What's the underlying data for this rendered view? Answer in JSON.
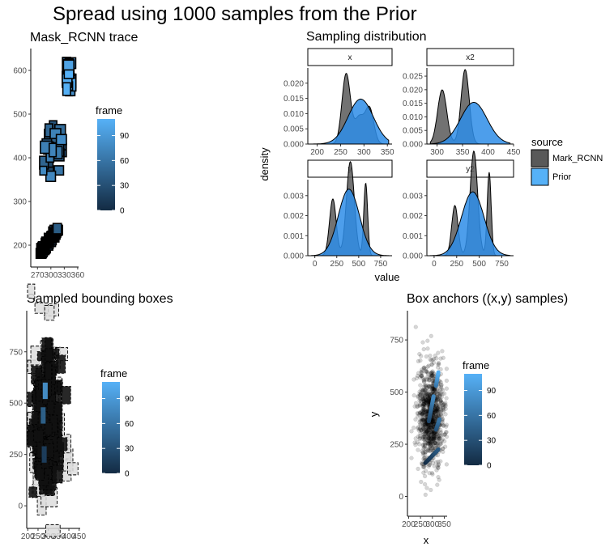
{
  "page": {
    "title": "Spread using 1000 samples from the Prior"
  },
  "colors": {
    "frame_low": "#132B43",
    "frame_high": "#56B1F7",
    "mask_rcnn_fill": "#595959",
    "prior_fill": "#2e8de8",
    "strip_bg": "#ffffff"
  },
  "chart_data": [
    {
      "id": "mask_rcnn_trace",
      "type": "box-trace",
      "title": "Mask_RCNN trace",
      "xlabel": "",
      "ylabel": "",
      "xlim": [
        255,
        362
      ],
      "ylim": [
        150,
        650
      ],
      "xticks": [
        270,
        300,
        330,
        360
      ],
      "yticks": [
        200,
        300,
        400,
        500,
        600
      ],
      "clusters": [
        {
          "x": [
            267,
            325
          ],
          "y": [
            170,
            265
          ],
          "frames": [
            0,
            40
          ],
          "note_frame": 100
        },
        {
          "x": [
            270,
            345
          ],
          "y": [
            345,
            490
          ],
          "frames": [
            20,
            80
          ]
        },
        {
          "x": [
            325,
            355
          ],
          "y": [
            540,
            630
          ],
          "frames": [
            60,
            110
          ]
        }
      ],
      "legend": {
        "title": "frame",
        "ticks": [
          0,
          30,
          60,
          90
        ],
        "range": [
          0,
          110
        ]
      },
      "grid": false
    },
    {
      "id": "sampling_distribution",
      "type": "area",
      "title": "Sampling distribution",
      "xlabel": "value",
      "ylabel": "density",
      "legend": {
        "title": "source",
        "entries": [
          "Mark_RCNN",
          "Prior"
        ],
        "placement": "right"
      },
      "facets": [
        {
          "label": "x",
          "xlim": [
            180,
            360
          ],
          "ylim": [
            0,
            0.025
          ],
          "xticks": [
            200,
            250,
            300,
            350
          ],
          "yticks": [
            0,
            0.005,
            0.01,
            0.015,
            0.02
          ],
          "yticklabels": [
            "0.000",
            "0.005",
            "0.010",
            "0.015",
            "0.020"
          ],
          "mask_rcnn_peaks": [
            {
              "mu": 262,
              "sd": 9,
              "w": 0.52
            },
            {
              "mu": 290,
              "sd": 10,
              "w": 0.22
            },
            {
              "mu": 312,
              "sd": 9,
              "w": 0.26
            }
          ],
          "prior_peaks": [
            {
              "mu": 293,
              "sd": 27,
              "w": 1.0
            }
          ]
        },
        {
          "label": "x2",
          "xlim": [
            280,
            450
          ],
          "ylim": [
            0,
            0.028
          ],
          "xticks": [
            300,
            350,
            400,
            450
          ],
          "yticks": [
            0,
            0.005,
            0.01,
            0.015,
            0.02,
            0.025
          ],
          "yticklabels": [
            "0.000",
            "0.005",
            "0.010",
            "0.015",
            "0.020",
            "0.025"
          ],
          "mask_rcnn_peaks": [
            {
              "mu": 310,
              "sd": 9,
              "w": 0.45
            },
            {
              "mu": 355,
              "sd": 8,
              "w": 0.55
            }
          ],
          "prior_peaks": [
            {
              "mu": 372,
              "sd": 26,
              "w": 1.0
            }
          ]
        },
        {
          "label": "y",
          "xlim": [
            -80,
            880
          ],
          "ylim": [
            0,
            0.0038
          ],
          "xticks": [
            0,
            250,
            500,
            750
          ],
          "yticks": [
            0,
            0.001,
            0.002,
            0.003
          ],
          "yticklabels": [
            "0.000",
            "0.001",
            "0.002",
            "0.003"
          ],
          "mask_rcnn_peaks": [
            {
              "mu": 205,
              "sd": 38,
              "w": 0.27
            },
            {
              "mu": 405,
              "sd": 45,
              "w": 0.53
            },
            {
              "mu": 580,
              "sd": 22,
              "w": 0.2
            }
          ],
          "prior_peaks": [
            {
              "mu": 388,
              "sd": 120,
              "w": 1.0
            }
          ]
        },
        {
          "label": "y2",
          "xlim": [
            -80,
            880
          ],
          "ylim": [
            0,
            0.0038
          ],
          "xticks": [
            0,
            250,
            500,
            750
          ],
          "yticks": [
            0,
            0.001,
            0.002,
            0.003
          ],
          "yticklabels": [
            "0.000",
            "0.001",
            "0.002",
            "0.003"
          ],
          "mask_rcnn_peaks": [
            {
              "mu": 230,
              "sd": 35,
              "w": 0.22
            },
            {
              "mu": 440,
              "sd": 42,
              "w": 0.55
            },
            {
              "mu": 610,
              "sd": 22,
              "w": 0.23
            }
          ],
          "prior_peaks": [
            {
              "mu": 428,
              "sd": 125,
              "w": 1.0
            }
          ]
        }
      ]
    },
    {
      "id": "sampled_bounding_boxes",
      "type": "box-samples",
      "title": "Sampled bounding boxes",
      "xlabel": "",
      "ylabel": "",
      "xlim": [
        195,
        455
      ],
      "ylim": [
        -110,
        950
      ],
      "xticks": [
        200,
        250,
        300,
        350,
        400,
        450
      ],
      "yticks": [
        0,
        250,
        500,
        750
      ],
      "legend": {
        "title": "frame",
        "ticks": [
          0,
          30,
          60,
          90
        ],
        "range": [
          0,
          110
        ]
      },
      "grid": false
    },
    {
      "id": "box_anchors",
      "type": "scatter",
      "title": "Box anchors ((x,y) samples)",
      "xlabel": "x",
      "ylabel": "y",
      "xlim": [
        195,
        362
      ],
      "ylim": [
        -95,
        890
      ],
      "xticks": [
        200,
        250,
        300,
        350
      ],
      "yticks": [
        0,
        250,
        500,
        750
      ],
      "cloud": {
        "n": 1000,
        "x_mean": 293,
        "x_sd": 27,
        "y_mean": 388,
        "y_sd": 120
      },
      "trace_segments": [
        {
          "x": [
            270,
            325
          ],
          "y": [
            160,
            225
          ],
          "frames": [
            0,
            40
          ]
        },
        {
          "x": [
            285,
            305
          ],
          "y": [
            360,
            480
          ],
          "frames": [
            20,
            80
          ]
        },
        {
          "x": [
            315,
            330
          ],
          "y": [
            320,
            370
          ],
          "frames": [
            30,
            60
          ]
        },
        {
          "x": [
            315,
            325
          ],
          "y": [
            530,
            595
          ],
          "frames": [
            60,
            110
          ]
        }
      ],
      "legend": {
        "title": "frame",
        "ticks": [
          0,
          30,
          60,
          90
        ],
        "range": [
          0,
          110
        ]
      },
      "grid": false
    }
  ]
}
